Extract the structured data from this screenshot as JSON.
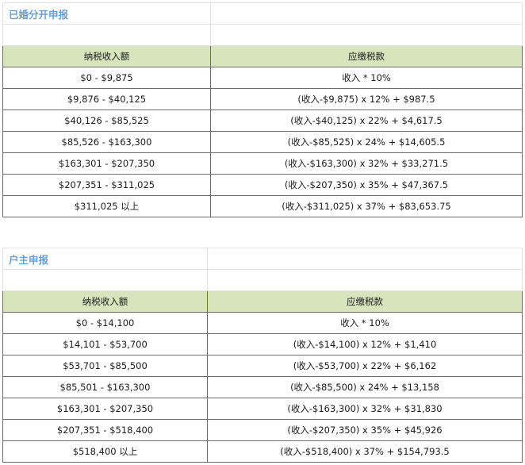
{
  "sections": [
    {
      "title": "已婚分开申报",
      "headers": [
        "纳税收入额",
        "应缴税款"
      ],
      "rows": [
        [
          "$0 - $9,875",
          "收入 * 10%"
        ],
        [
          "$9,876 -  $40,125",
          "(收入-$9,875) x 12% + $987.5"
        ],
        [
          "$40,126 -  $85,525",
          "(收入-$40,125) x 22% + $4,617.5"
        ],
        [
          "$85,526 -  $163,300",
          "(收入-$85,525) x 24% + $14,605.5"
        ],
        [
          "$163,301 -  $207,350",
          "(收入-$163,300) x 32% + $33,271.5"
        ],
        [
          "$207,351 -  $311,025",
          "(收入-$207,350) x 35% + $47,367.5"
        ],
        [
          "$311,025 以上",
          "(收入-$311,025) x 37% + $83,653.75"
        ]
      ]
    },
    {
      "title": "户主申报",
      "headers": [
        "纳税收入额",
        "应缴税款"
      ],
      "rows": [
        [
          "$0 - $14,100",
          "收入 * 10%"
        ],
        [
          "$14,101 -  $53,700",
          "(收入-$14,100) x 12% + $1,410"
        ],
        [
          "$53,701 -  $85,500",
          "(收入-$53,700) x 22% + $6,162"
        ],
        [
          "$85,501 -  $163,300",
          "(收入-$85,500) x 24% + $13,158"
        ],
        [
          "$163,301 -  $207,350",
          "(收入-$163,300) x 32% + $31,830"
        ],
        [
          "$207,351 -  $518,400",
          "(收入-$207,350) x 35% + $45,926"
        ],
        [
          "$518,400 以上",
          "(收入-$518,400) x 37% + $154,793.5"
        ]
      ]
    }
  ]
}
